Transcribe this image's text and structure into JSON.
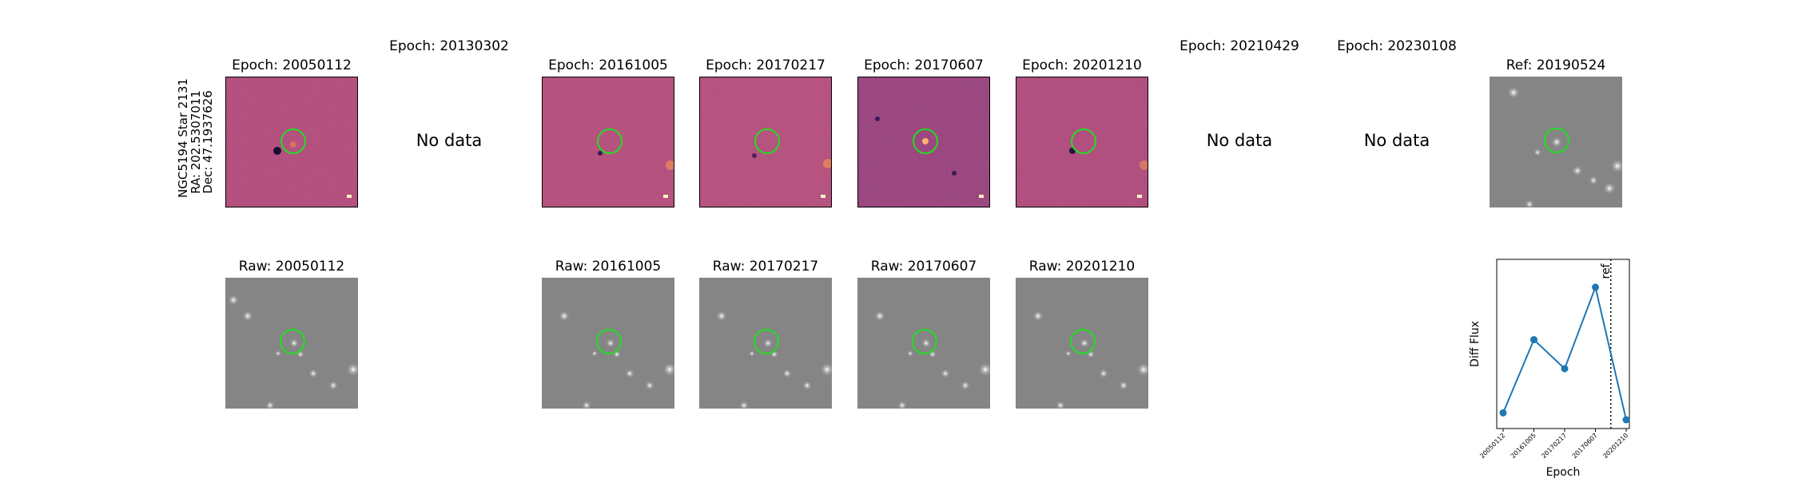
{
  "figure": {
    "star_label_lines": [
      "NGC5194 Star 2131",
      "RA: 202.5307011",
      "Dec: 47.1937626"
    ],
    "diff_titles": [
      "Epoch: 20050112",
      "Epoch: 20130302",
      "Epoch: 20161005",
      "Epoch: 20170217",
      "Epoch: 20170607",
      "Epoch: 20201210",
      "Epoch: 20210429",
      "Epoch: 20230108"
    ],
    "no_data_label": "No data",
    "ref_title": "Ref: 20190524",
    "raw_titles": [
      "Raw: 20050112",
      "Raw: 20161005",
      "Raw: 20170217",
      "Raw: 20170607",
      "Raw: 20201210"
    ],
    "colors": {
      "diff_base": "#b04b78",
      "raw_base": "#8a8a8a",
      "circle": "#22dd22",
      "line": "#1f77b4"
    }
  },
  "chart_data": {
    "type": "line",
    "categories": [
      "20050112",
      "20161005",
      "20170217",
      "20170607",
      "20201210"
    ],
    "values": [
      0.05,
      0.58,
      0.37,
      0.96,
      0.0
    ],
    "xlabel": "Epoch",
    "ylabel": "Diff Flux",
    "reference_line": {
      "label": "ref",
      "position_between": [
        "20170607",
        "20201210"
      ],
      "style": "dotted"
    },
    "y_ticks_shown": false
  }
}
